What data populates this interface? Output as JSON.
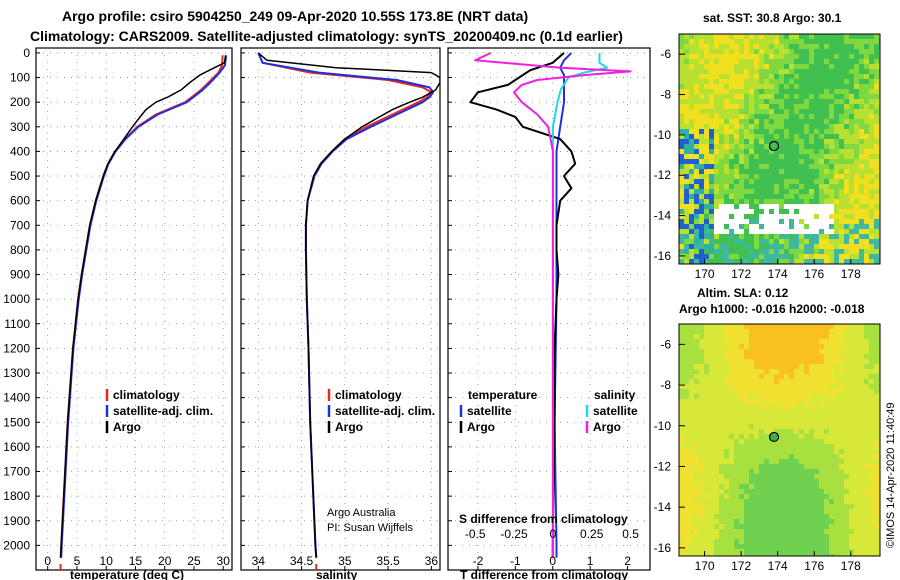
{
  "title_line1": "Argo profile: csiro 5904250_249 09-Apr-2020 10.55S 173.8E (NRT data)",
  "title_line2": "Climatology: CARS2009. Satellite-adjusted climatology: synTS_20200409.nc (0.1d earlier)",
  "depth_ticks": [
    "0",
    "100",
    "200",
    "300",
    "400",
    "500",
    "600",
    "700",
    "800",
    "900",
    "1000",
    "1100",
    "1200",
    "1300",
    "1400",
    "1500",
    "1600",
    "1700",
    "1800",
    "1900",
    "2000"
  ],
  "colors": {
    "climatology": "#e8281c",
    "satellite": "#2030e0",
    "argo": "#000000",
    "sat_sal": "#22d8e0",
    "argo_sal": "#f020e0"
  },
  "chart_data": [
    {
      "type": "line",
      "panel": "temperature",
      "xlabel": "temperature (deg C)",
      "xlim": [
        -2,
        31.5
      ],
      "xticks": [
        "0",
        "5",
        "10",
        "15",
        "20",
        "25",
        "30"
      ],
      "ylim": [
        2100,
        -20
      ],
      "legend": [
        "climatology",
        "satellite-adj. clim.",
        "Argo"
      ],
      "series": [
        {
          "name": "climatology",
          "depth": [
            10,
            50,
            80,
            120,
            150,
            200,
            250,
            300,
            350,
            400,
            450,
            500,
            600,
            700,
            800,
            900,
            1000,
            1200,
            1500,
            2000,
            2050
          ],
          "values": [
            29.9,
            29.8,
            29.2,
            27.5,
            26.2,
            23.5,
            18.5,
            15.3,
            13.2,
            11.5,
            10.3,
            9.5,
            8.2,
            7.2,
            6.5,
            5.8,
            5.2,
            4.3,
            3.4,
            2.3,
            2.2
          ]
        },
        {
          "name": "satellite-adj. clim.",
          "depth": [
            10,
            50,
            80,
            120,
            150,
            200,
            250,
            300,
            350,
            400,
            450,
            500,
            600,
            700,
            800,
            900,
            1000,
            1200,
            1500,
            2000,
            2050
          ],
          "values": [
            30.5,
            30.3,
            29.4,
            27.8,
            26.5,
            23.8,
            18.8,
            15.5,
            13.3,
            11.6,
            10.4,
            9.6,
            8.3,
            7.3,
            6.6,
            5.9,
            5.3,
            4.4,
            3.5,
            2.4,
            2.3
          ]
        },
        {
          "name": "Argo",
          "depth": [
            10,
            40,
            60,
            90,
            120,
            150,
            180,
            200,
            230,
            260,
            300,
            350,
            400,
            450,
            500,
            600,
            700,
            800,
            900,
            1000,
            1200,
            1500,
            2000,
            2050
          ],
          "values": [
            30.4,
            30.2,
            28.5,
            26.0,
            24.3,
            22.8,
            20.5,
            18.5,
            16.8,
            15.8,
            14.5,
            13.0,
            11.5,
            10.3,
            9.5,
            8.2,
            7.2,
            6.5,
            5.8,
            5.2,
            4.3,
            3.4,
            2.3,
            2.2
          ]
        }
      ]
    },
    {
      "type": "line",
      "panel": "salinity",
      "xlabel": "salinity",
      "xlim": [
        33.8,
        36.1
      ],
      "xticks": [
        "34",
        "34.5",
        "35",
        "35.5",
        "36"
      ],
      "ylim": [
        2100,
        -20
      ],
      "legend": [
        "climatology",
        "satellite-adj. clim.",
        "Argo"
      ],
      "series": [
        {
          "name": "climatology",
          "depth": [
            0,
            40,
            80,
            110,
            140,
            160,
            180,
            200,
            250,
            300,
            350,
            400,
            450,
            500,
            600,
            700,
            800,
            1000,
            1200,
            1500,
            2000,
            2050
          ],
          "values": [
            34.0,
            34.05,
            34.6,
            35.5,
            35.9,
            36.0,
            35.95,
            35.85,
            35.55,
            35.25,
            35.0,
            34.85,
            34.72,
            34.64,
            34.57,
            34.55,
            34.55,
            34.56,
            34.58,
            34.6,
            34.66,
            34.67
          ]
        },
        {
          "name": "satellite-adj. clim.",
          "depth": [
            0,
            40,
            80,
            110,
            140,
            160,
            180,
            200,
            250,
            300,
            350,
            400,
            450,
            500,
            600,
            700,
            800,
            1000,
            1200,
            1500,
            2000,
            2050
          ],
          "values": [
            34.0,
            34.05,
            34.7,
            35.6,
            35.98,
            36.02,
            35.98,
            35.9,
            35.6,
            35.3,
            35.02,
            34.86,
            34.73,
            34.65,
            34.57,
            34.55,
            34.55,
            34.56,
            34.58,
            34.6,
            34.66,
            34.67
          ]
        },
        {
          "name": "Argo",
          "depth": [
            0,
            30,
            60,
            80,
            100,
            120,
            150,
            180,
            200,
            230,
            260,
            300,
            350,
            400,
            450,
            500,
            600,
            700,
            800,
            1000,
            1200,
            1500,
            2000,
            2050
          ],
          "values": [
            34.0,
            34.1,
            34.9,
            36.0,
            36.1,
            36.1,
            36.05,
            35.9,
            35.75,
            35.55,
            35.4,
            35.2,
            35.0,
            34.85,
            34.72,
            34.64,
            34.57,
            34.55,
            34.55,
            34.56,
            34.58,
            34.6,
            34.66,
            34.67
          ]
        }
      ]
    },
    {
      "type": "line",
      "panel": "difference",
      "xlabel": "T difference from climatology",
      "xlabel2": "S difference from climatology",
      "xlim": [
        -2.8,
        2.6
      ],
      "xticks": [
        "-2",
        "-1",
        "0",
        "1",
        "2"
      ],
      "xticks2": [
        "-0.5",
        "-0.25",
        "0",
        "0.25",
        "0.5"
      ],
      "ylim": [
        2100,
        -20
      ],
      "legend_temperature": [
        "temperature",
        "satellite",
        "Argo"
      ],
      "legend_salinity": [
        "salinity",
        "satellite",
        "Argo"
      ],
      "series": [
        {
          "name": "T satellite",
          "depth": [
            0,
            30,
            60,
            90,
            120,
            160,
            200,
            300,
            400,
            500,
            600,
            800,
            1000,
            1500,
            2000,
            2050
          ],
          "values": [
            0.5,
            0.3,
            0.2,
            0.3,
            0.3,
            0.3,
            0.3,
            0.2,
            0.1,
            0.1,
            0.1,
            0.1,
            0.1,
            0.05,
            0.1,
            0.1
          ]
        },
        {
          "name": "T Argo",
          "depth": [
            0,
            40,
            70,
            100,
            130,
            160,
            200,
            230,
            260,
            300,
            350,
            400,
            450,
            500,
            550,
            600,
            700,
            800,
            900,
            1000,
            1200,
            1500,
            2000,
            2050
          ],
          "values": [
            0.3,
            0.0,
            -0.6,
            -0.9,
            -1.2,
            -2.0,
            -2.2,
            -1.5,
            -1.0,
            -0.8,
            0.2,
            0.5,
            0.6,
            0.3,
            0.5,
            0.2,
            0.1,
            0.1,
            0.15,
            0.1,
            0.05,
            0.05,
            0.0,
            0.0
          ]
        },
        {
          "name": "S satellite",
          "depth": [
            0,
            40,
            60,
            80,
            100,
            150,
            200,
            300,
            400,
            500,
            600,
            800,
            1000,
            1500,
            2000,
            2050
          ],
          "values": [
            0.3,
            0.3,
            0.35,
            0.2,
            0.1,
            0.05,
            0.03,
            0.0,
            0.0,
            0.0,
            0.0,
            0.0,
            0.0,
            0.0,
            0.0,
            0.0
          ]
        },
        {
          "name": "S Argo",
          "depth": [
            0,
            30,
            60,
            75,
            90,
            110,
            130,
            160,
            200,
            250,
            300,
            400,
            500,
            600,
            800,
            1000,
            1500,
            2000,
            2050
          ],
          "values": [
            -0.4,
            -0.5,
            0.05,
            0.5,
            0.2,
            -0.1,
            -0.2,
            -0.25,
            -0.2,
            -0.1,
            -0.03,
            0.0,
            0.0,
            0.0,
            0.0,
            0.0,
            0.0,
            0.0,
            0.0
          ]
        }
      ]
    }
  ],
  "footer": {
    "org": "Argo Australia",
    "pi": "PI: Susan Wijffels"
  },
  "maps": {
    "top_title": "sat. SST: 30.8 Argo: 30.1",
    "between_label": "Altim. SLA: 0.12",
    "bottom_title": "Argo h1000: -0.016 h2000: -0.018",
    "lat_ticks": [
      "-6",
      "-8",
      "-10",
      "-12",
      "-14",
      "-16"
    ],
    "lon_ticks": [
      "170",
      "172",
      "174",
      "176",
      "178"
    ],
    "argo_lon": 173.8,
    "argo_lat": -10.55,
    "lon_range": [
      168.6,
      179.6
    ],
    "lat_range": [
      -5.0,
      -16.4
    ]
  },
  "stamp": "©IMOS 14-Apr-2020 11:40:49"
}
